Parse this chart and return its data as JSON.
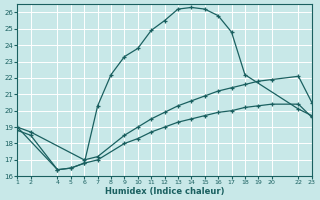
{
  "xlabel": "Humidex (Indice chaleur)",
  "bg_color": "#c8e8e8",
  "grid_color": "#ffffff",
  "line_color": "#1a6060",
  "xlim": [
    1,
    23
  ],
  "ylim": [
    16,
    26.5
  ],
  "xticks": [
    1,
    2,
    4,
    5,
    6,
    7,
    8,
    9,
    10,
    11,
    12,
    13,
    14,
    15,
    16,
    17,
    18,
    19,
    20,
    22,
    23
  ],
  "yticks": [
    16,
    17,
    18,
    19,
    20,
    21,
    22,
    23,
    24,
    25,
    26
  ],
  "line1_x": [
    1,
    4,
    5,
    6,
    7,
    8,
    9,
    10,
    11,
    12,
    13,
    14,
    15,
    16,
    17,
    18,
    22,
    23
  ],
  "line1_y": [
    19.0,
    16.4,
    16.5,
    16.8,
    20.3,
    22.2,
    23.3,
    23.8,
    24.9,
    25.5,
    26.2,
    26.3,
    26.2,
    25.8,
    24.8,
    22.2,
    20.1,
    19.7
  ],
  "line2_x": [
    1,
    2,
    6,
    7,
    9,
    10,
    11,
    12,
    13,
    14,
    15,
    16,
    17,
    18,
    19,
    20,
    22,
    23
  ],
  "line2_y": [
    19.0,
    18.7,
    17.0,
    17.2,
    18.5,
    19.0,
    19.5,
    19.9,
    20.3,
    20.6,
    20.9,
    21.2,
    21.4,
    21.6,
    21.8,
    21.9,
    22.1,
    20.5
  ],
  "line3_x": [
    1,
    2,
    4,
    5,
    6,
    7,
    9,
    10,
    11,
    12,
    13,
    14,
    15,
    16,
    17,
    18,
    19,
    20,
    22,
    23
  ],
  "line3_y": [
    18.8,
    18.5,
    16.4,
    16.5,
    16.8,
    17.0,
    18.0,
    18.3,
    18.7,
    19.0,
    19.3,
    19.5,
    19.7,
    19.9,
    20.0,
    20.2,
    20.3,
    20.4,
    20.4,
    19.6
  ]
}
